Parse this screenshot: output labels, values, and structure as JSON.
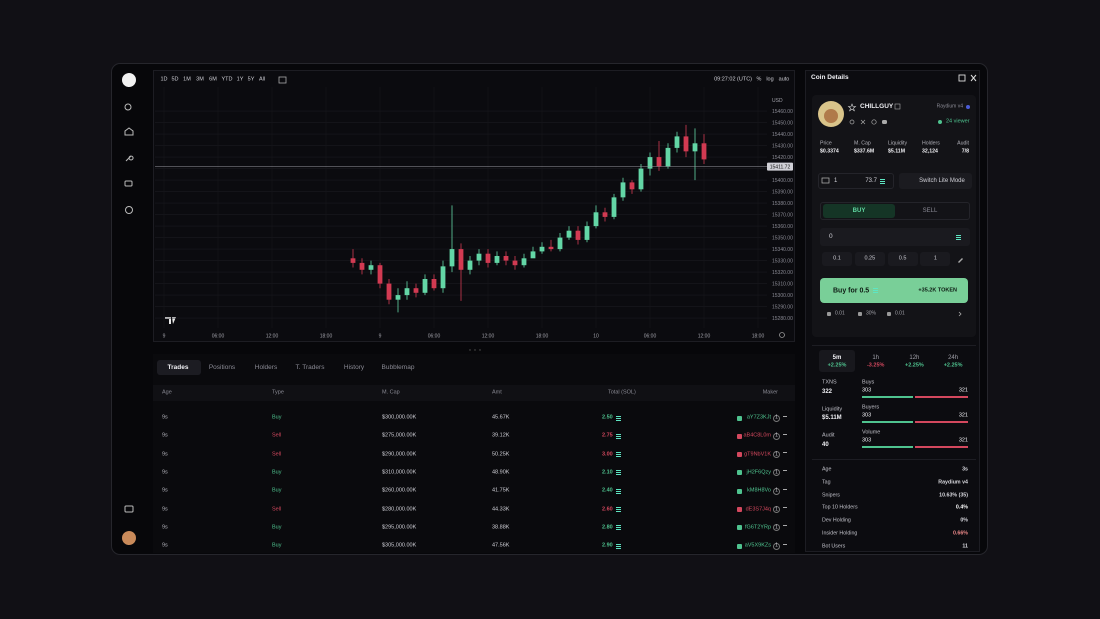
{
  "toolbar": {
    "ranges": [
      "1D",
      "5D",
      "1M",
      "3M",
      "6M",
      "YTD",
      "1Y",
      "5Y",
      "All"
    ],
    "clock": "09:27:02 (UTC)",
    "percent": "%",
    "log": "log",
    "auto": "auto"
  },
  "chart_data": {
    "type": "candlestick",
    "x": [
      21,
      22,
      23,
      24,
      25,
      26,
      27,
      28,
      29,
      30,
      31,
      32,
      33,
      34,
      35,
      36,
      37,
      38,
      39,
      40,
      41,
      42,
      43,
      44,
      45,
      46,
      47,
      48,
      49,
      50,
      51,
      52,
      53,
      54,
      55,
      56,
      57,
      58,
      59,
      60
    ],
    "open": [
      15332,
      15328,
      15322,
      15326,
      15310,
      15296,
      15300,
      15306,
      15302,
      15314,
      15306,
      15325,
      15340,
      15322,
      15330,
      15336,
      15328,
      15334,
      15330,
      15326,
      15332,
      15338,
      15342,
      15340,
      15350,
      15356,
      15348,
      15360,
      15372,
      15368,
      15385,
      15398,
      15392,
      15410,
      15420,
      15412,
      15428,
      15438,
      15425,
      15432
    ],
    "high": [
      15340,
      15332,
      15330,
      15328,
      15314,
      15306,
      15312,
      15310,
      15318,
      15318,
      15330,
      15378,
      15345,
      15334,
      15340,
      15340,
      15338,
      15338,
      15334,
      15336,
      15342,
      15346,
      15348,
      15354,
      15360,
      15360,
      15364,
      15378,
      15376,
      15388,
      15402,
      15400,
      15414,
      15424,
      15434,
      15432,
      15442,
      15448,
      15445,
      15440
    ],
    "low": [
      15324,
      15318,
      15318,
      15306,
      15292,
      15285,
      15296,
      15298,
      15300,
      15304,
      15302,
      15320,
      15295,
      15318,
      15326,
      15324,
      15326,
      15326,
      15322,
      15324,
      15334,
      15336,
      15338,
      15338,
      15348,
      15344,
      15346,
      15358,
      15364,
      15366,
      15382,
      15388,
      15390,
      15404,
      15408,
      15410,
      15424,
      15420,
      15400,
      15414
    ],
    "close": [
      15328,
      15322,
      15326,
      15310,
      15296,
      15300,
      15306,
      15302,
      15314,
      15306,
      15325,
      15340,
      15322,
      15330,
      15336,
      15328,
      15334,
      15330,
      15326,
      15332,
      15338,
      15342,
      15340,
      15350,
      15356,
      15348,
      15360,
      15372,
      15368,
      15385,
      15398,
      15392,
      15410,
      15420,
      15412,
      15428,
      15438,
      15425,
      15432,
      15418
    ],
    "up_color": "#63d6a6",
    "down_color": "#d23a52",
    "xlim": [
      -1,
      67
    ],
    "xticks": [
      {
        "value": 0,
        "label": "9"
      },
      {
        "value": 6,
        "label": "06:00"
      },
      {
        "value": 12,
        "label": "12:00"
      },
      {
        "value": 18,
        "label": "18:00"
      },
      {
        "value": 24,
        "label": "9"
      },
      {
        "value": 30,
        "label": "06:00"
      },
      {
        "value": 36,
        "label": "12:00"
      },
      {
        "value": 42,
        "label": "18:00"
      },
      {
        "value": 48,
        "label": "10"
      },
      {
        "value": 54,
        "label": "06:00"
      },
      {
        "value": 60,
        "label": "12:00"
      },
      {
        "value": 66,
        "label": "18:00"
      }
    ],
    "ylim": [
      15274,
      15474
    ],
    "yticks": [
      {
        "value": 15280,
        "label": "15280.00"
      },
      {
        "value": 15290,
        "label": "15290.00"
      },
      {
        "value": 15300,
        "label": "15300.00"
      },
      {
        "value": 15310,
        "label": "15310.00"
      },
      {
        "value": 15320,
        "label": "15320.00"
      },
      {
        "value": 15330,
        "label": "15330.00"
      },
      {
        "value": 15340,
        "label": "15340.00"
      },
      {
        "value": 15350,
        "label": "15350.00"
      },
      {
        "value": 15360,
        "label": "15360.00"
      },
      {
        "value": 15370,
        "label": "15370.00"
      },
      {
        "value": 15380,
        "label": "15380.00"
      },
      {
        "value": 15390,
        "label": "15390.00"
      },
      {
        "value": 15400,
        "label": "15400.00"
      },
      {
        "value": 15410,
        "label": "15410.00"
      },
      {
        "value": 15420,
        "label": "15420.00"
      },
      {
        "value": 15430,
        "label": "15430.00"
      },
      {
        "value": 15440,
        "label": "15440.00"
      },
      {
        "value": 15450,
        "label": "15450.00"
      },
      {
        "value": 15460,
        "label": "15460.00"
      }
    ],
    "y_unit": "USD",
    "last_price": 15411.72,
    "grid": true
  },
  "tabs": [
    "Trades",
    "Positions",
    "Holders",
    "T. Traders",
    "History",
    "Bubblemap"
  ],
  "trades": {
    "headers": [
      "Age",
      "Type",
      "M. Cap",
      "Amt",
      "Total (SOL)",
      "Maker"
    ],
    "rows": [
      {
        "age": "9s",
        "type": "Buy",
        "mcap": "$300,000.00K",
        "amount": "45.67K",
        "total": "2.50",
        "maker": "aY7Z3KJt",
        "count": "1",
        "color": "#4fc38f"
      },
      {
        "age": "9s",
        "type": "Sell",
        "mcap": "$275,000.00K",
        "amount": "39.12K",
        "total": "2.75",
        "maker": "aB4C8L0m",
        "count": "1",
        "color": "#d4485e"
      },
      {
        "age": "9s",
        "type": "Sell",
        "mcap": "$290,000.00K",
        "amount": "50.25K",
        "total": "3.00",
        "maker": "gT9NbV1K",
        "count": "1",
        "color": "#d4485e"
      },
      {
        "age": "9s",
        "type": "Buy",
        "mcap": "$310,000.00K",
        "amount": "48.90K",
        "total": "2.10",
        "maker": "jH2F6Qzy",
        "count": "1",
        "color": "#4fc38f"
      },
      {
        "age": "9s",
        "type": "Buy",
        "mcap": "$260,000.00K",
        "amount": "41.75K",
        "total": "2.40",
        "maker": "kM8H8Vo",
        "count": "1",
        "color": "#4fc38f"
      },
      {
        "age": "9s",
        "type": "Sell",
        "mcap": "$280,000.00K",
        "amount": "44.33K",
        "total": "2.60",
        "maker": "dE3S7J4q",
        "count": "1",
        "color": "#d4485e"
      },
      {
        "age": "9s",
        "type": "Buy",
        "mcap": "$295,000.00K",
        "amount": "38.88K",
        "total": "2.80",
        "maker": "fG6T2YRp",
        "count": "1",
        "color": "#4fc38f"
      },
      {
        "age": "9s",
        "type": "Buy",
        "mcap": "$305,000.00K",
        "amount": "47.56K",
        "total": "2.90",
        "maker": "aV5X9KZs",
        "count": "1",
        "color": "#4fc38f"
      }
    ]
  },
  "coin": {
    "title": "Coin Details",
    "name": "CHILLGUY",
    "pool": "Raydium v4",
    "viewers": "24 viewer",
    "stats": [
      {
        "label": "Price",
        "value": "$0.3374"
      },
      {
        "label": "M. Cap",
        "value": "$337.6M"
      },
      {
        "label": "Liquidity",
        "value": "$5.11M"
      },
      {
        "label": "Holders",
        "value": "32,124"
      },
      {
        "label": "Audit",
        "value": "7/8"
      }
    ],
    "wallet_count": "1",
    "balance": "73.7",
    "lite_mode": "Switch Lite Mode",
    "buy": "BUY",
    "sell": "SELL",
    "amount": "0",
    "quick": [
      "0.1",
      "0.25",
      "0.5",
      "1"
    ],
    "buy_button": "Buy for 0.5",
    "receive": "+35.2K TOKEN",
    "settings": [
      "0.01",
      "30%",
      "0.01"
    ],
    "timeframes": [
      {
        "label": "5m",
        "change": "+2.25%",
        "color": "#4fc38f"
      },
      {
        "label": "1h",
        "change": "-3.25%",
        "color": "#d4485e"
      },
      {
        "label": "12h",
        "change": "+2.25%",
        "color": "#4fc38f"
      },
      {
        "label": "24h",
        "change": "+2.25%",
        "color": "#4fc38f"
      }
    ],
    "summary": [
      {
        "label": "TXNS",
        "value": "322"
      },
      {
        "label": "Liquidity",
        "value": "$5.11M"
      },
      {
        "label": "Audit",
        "value": "40"
      }
    ],
    "flows": [
      {
        "label": "Buys",
        "buy": 303,
        "sell": 321
      },
      {
        "label": "Buyers",
        "buy": 303,
        "sell": 321
      },
      {
        "label": "Volume",
        "buy": 303,
        "sell": 321
      }
    ],
    "details": [
      {
        "label": "Age",
        "value": "3s",
        "color": "#d8d8de"
      },
      {
        "label": "Tag",
        "value": "Raydium v4",
        "color": "#d8d8de"
      },
      {
        "label": "Snipers",
        "value": "10.63% (35)",
        "color": "#d8d8de"
      },
      {
        "label": "Top 10 Holders",
        "value": "0.4%",
        "color": "#ffffff"
      },
      {
        "label": "Dev Holding",
        "value": "0%",
        "color": "#d8d8de"
      },
      {
        "label": "Insider Holding",
        "value": "0.66%",
        "color": "#ef8a8a"
      },
      {
        "label": "Bot Users",
        "value": "11",
        "color": "#d8d8de"
      }
    ]
  }
}
